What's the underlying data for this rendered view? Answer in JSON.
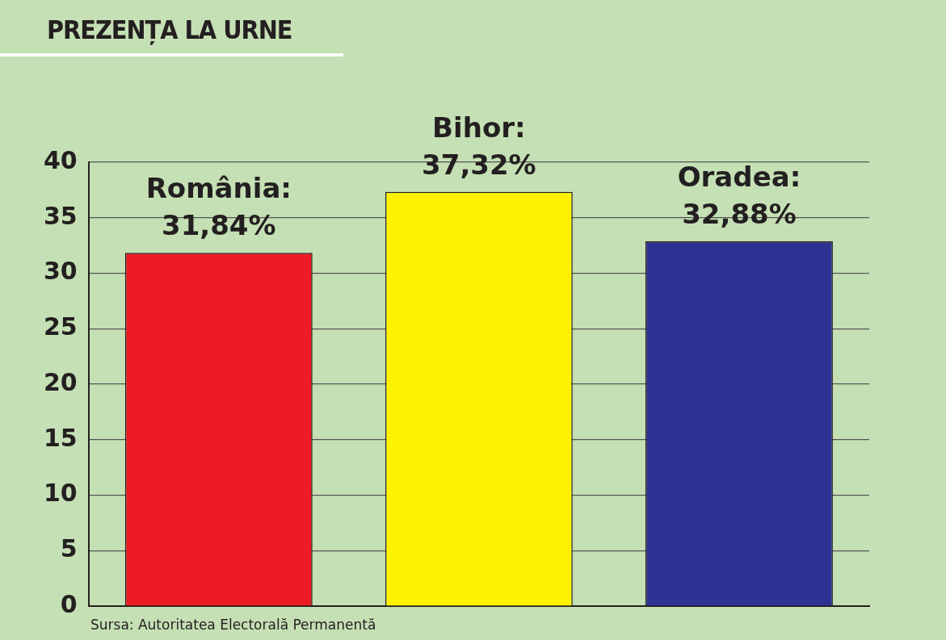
{
  "chart_data": {
    "type": "bar",
    "title": "PREZENȚA LA URNE",
    "categories": [
      null,
      null,
      null
    ],
    "values": [
      31.84,
      37.32,
      32.88
    ],
    "value_labels": [
      "România: 31,84%",
      "Bihor: 37,32%",
      "Oradea: 32,88%"
    ],
    "colors": [
      "#ed1c24",
      "#fff200",
      "#2e3192"
    ],
    "ylim": [
      0,
      40
    ],
    "yticks": [
      0,
      5,
      10,
      15,
      20,
      25,
      30,
      35,
      40
    ],
    "grid": "y",
    "legend": false,
    "annotations": [
      "Sursa: Autoritatea Electorală Permanentă"
    ]
  }
}
